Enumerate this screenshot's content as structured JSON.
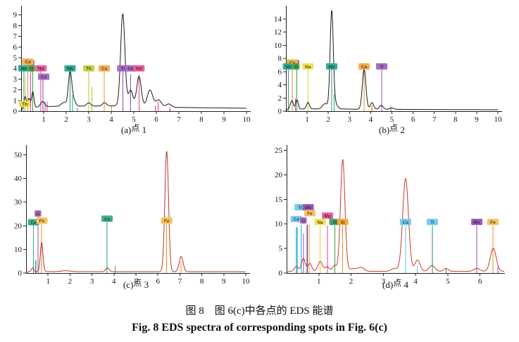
{
  "figure": {
    "caption_cn": "图 8　图 6(c)中各点的 EDS 能谱",
    "caption_en": "Fig. 8 EDS spectra of corresponding spots in Fig.  6(c)"
  },
  "chart_data": {
    "type": "line",
    "description": "Four EDS spectra subplots; x axis is energy (keV), y axis is counts; vertical colored lines mark element emission lines with colored element labels",
    "subplots": [
      {
        "id": "a",
        "caption": {
          "prefix": "(a)",
          "cn": "点",
          "num": "1"
        },
        "xlim": [
          0,
          10
        ],
        "ylim": [
          0,
          9.6
        ],
        "xticks": [
          1,
          2,
          3,
          4,
          5,
          6,
          7,
          8,
          9,
          10
        ],
        "yticks": [
          0,
          1,
          2,
          3,
          4,
          5,
          6,
          7,
          8,
          9
        ],
        "curve_color": "#1b1b1b",
        "baseline": [
          [
            0,
            0
          ],
          [
            0.06,
            0.2
          ],
          [
            0.5,
            0.35
          ],
          [
            1.4,
            0.45
          ],
          [
            4.3,
            0.5
          ],
          [
            5.2,
            0.45
          ],
          [
            6.9,
            0.35
          ],
          [
            10,
            0.28
          ]
        ],
        "peaks": [
          [
            0.18,
            1.1,
            0.05
          ],
          [
            0.35,
            0.9,
            0.06
          ],
          [
            0.52,
            1.45,
            0.05
          ],
          [
            0.95,
            0.5,
            0.09
          ],
          [
            1.9,
            0.35,
            0.12
          ],
          [
            2.17,
            3.1,
            0.075
          ],
          [
            2.32,
            0.6,
            0.09
          ],
          [
            3.0,
            0.3,
            0.09
          ],
          [
            3.7,
            0.3,
            0.09
          ],
          [
            4.51,
            8.6,
            0.095
          ],
          [
            4.86,
            1.5,
            0.1
          ],
          [
            5.23,
            2.8,
            0.1
          ],
          [
            5.72,
            1.55,
            0.12
          ],
          [
            6.1,
            0.65,
            0.12
          ],
          [
            6.55,
            0.3,
            0.12
          ]
        ],
        "lines": [
          [
            0.12,
            3.8,
            "#23a089"
          ],
          [
            0.2,
            3.3,
            "#ded23e"
          ],
          [
            0.3,
            4.35,
            "#f08c1e"
          ],
          [
            0.42,
            4.2,
            "#e6399b"
          ],
          [
            0.52,
            3.8,
            "#3ca040"
          ],
          [
            0.88,
            3.7,
            "#e6399b"
          ],
          [
            0.97,
            3.0,
            "#8a4bb8"
          ],
          [
            1.06,
            0.9,
            "#8a4bb8"
          ],
          [
            1.15,
            0.9,
            "#e6399b"
          ],
          [
            2.17,
            3.8,
            "#23a089"
          ],
          [
            2.28,
            1.5,
            "#23a089"
          ],
          [
            2.5,
            0.3,
            "#3ca040"
          ],
          [
            3.0,
            3.65,
            "#b0c832"
          ],
          [
            3.14,
            2.3,
            "#b0c832"
          ],
          [
            3.69,
            3.65,
            "#f08c1e"
          ],
          [
            4.01,
            0.5,
            "#f08c1e"
          ],
          [
            4.51,
            3.8,
            "#8a4bb8"
          ],
          [
            4.86,
            3.45,
            "#8a4bb8"
          ],
          [
            5.23,
            3.45,
            "#e6399b"
          ],
          [
            5.95,
            0.5,
            "#e6399b"
          ],
          [
            6.08,
            0.9,
            "#e6399b"
          ],
          [
            6.6,
            0.3,
            "#e6399b"
          ]
        ],
        "labels": [
          [
            "",
            0.47,
            4.5,
            "#ee5ea4"
          ],
          [
            "Ca",
            0.3,
            4.62,
            "#f5b04d"
          ],
          [
            "Nb",
            0.12,
            4.0,
            "#2fae99"
          ],
          [
            "O",
            0.47,
            4.0,
            "#46a94c"
          ],
          [
            "Nd",
            0.88,
            4.0,
            "#ee5ea4"
          ],
          [
            "Ce",
            1.0,
            3.22,
            "#a36cc9"
          ],
          [
            "Th",
            0.16,
            0.7,
            "#e8db52"
          ],
          [
            "Nb",
            2.17,
            4.0,
            "#2fae99"
          ],
          [
            "Th",
            3.0,
            4.0,
            "#c4d44a"
          ],
          [
            "Ca",
            3.69,
            4.0,
            "#f5b04d"
          ],
          [
            "Ti",
            4.51,
            4.0,
            "#a36cc9"
          ],
          [
            "Ce",
            4.86,
            4.0,
            "#a36cc9"
          ],
          [
            "Nd",
            5.23,
            4.0,
            "#ee5ea4"
          ]
        ]
      },
      {
        "id": "b",
        "caption": {
          "prefix": "(b)",
          "cn": "点",
          "num": "2"
        },
        "xlim": [
          0,
          10
        ],
        "ylim": [
          0,
          15.6
        ],
        "xticks": [
          1,
          2,
          3,
          4,
          5,
          6,
          7,
          8,
          9,
          10
        ],
        "yticks": [
          0,
          2,
          4,
          6,
          8,
          10,
          12,
          14
        ],
        "curve_color": "#1b1b1b",
        "baseline": [
          [
            0,
            0
          ],
          [
            0.08,
            0.3
          ],
          [
            1.5,
            0.35
          ],
          [
            2.6,
            0.35
          ],
          [
            3.2,
            0.3
          ],
          [
            10,
            0.22
          ]
        ],
        "peaks": [
          [
            0.28,
            1.3,
            0.07
          ],
          [
            0.52,
            1.4,
            0.06
          ],
          [
            1.04,
            1.0,
            0.07
          ],
          [
            1.85,
            0.8,
            0.12
          ],
          [
            2.16,
            14.8,
            0.075
          ],
          [
            2.34,
            0.7,
            0.1
          ],
          [
            3.69,
            6.1,
            0.085
          ],
          [
            4.06,
            1.0,
            0.08
          ],
          [
            4.5,
            0.6,
            0.09
          ],
          [
            5.0,
            0.2,
            0.1
          ]
        ],
        "lines": [
          [
            0.12,
            6.45,
            "#23a089"
          ],
          [
            0.3,
            7.0,
            "#f08c1e"
          ],
          [
            0.45,
            2.0,
            "#8a4bb8"
          ],
          [
            0.52,
            6.45,
            "#3ca040"
          ],
          [
            1.04,
            6.35,
            "#ded23e"
          ],
          [
            2.16,
            6.35,
            "#23a089"
          ],
          [
            2.28,
            2.6,
            "#23a089"
          ],
          [
            3.69,
            6.35,
            "#f08c1e"
          ],
          [
            4.06,
            0.9,
            "#f08c1e"
          ],
          [
            4.52,
            6.35,
            "#8a4bb8"
          ],
          [
            4.95,
            0.8,
            "#8a4bb8"
          ]
        ],
        "labels": [
          [
            "",
            0.5,
            7.3,
            "#a36cc9"
          ],
          [
            "Ca",
            0.3,
            7.38,
            "#f5b04d"
          ],
          [
            "Nb",
            0.12,
            6.8,
            "#2fae99"
          ],
          [
            "O",
            0.48,
            6.8,
            "#46a94c"
          ],
          [
            "Na",
            1.04,
            6.8,
            "#f1e455"
          ],
          [
            "Nb",
            2.16,
            6.8,
            "#2fae99"
          ],
          [
            "Ca",
            3.69,
            6.8,
            "#f5b04d"
          ],
          [
            "Ti",
            4.52,
            6.8,
            "#a36cc9"
          ]
        ]
      },
      {
        "id": "c",
        "caption": {
          "prefix": "(c)",
          "cn": "点",
          "num": "3"
        },
        "xlim": [
          0,
          10
        ],
        "ylim": [
          0,
          53
        ],
        "xticks": [
          1,
          2,
          3,
          4,
          5,
          6,
          7,
          8,
          9,
          10
        ],
        "yticks": [
          0,
          10,
          20,
          30,
          40,
          50
        ],
        "curve_color": "#b5382c",
        "baseline": [
          [
            0,
            0
          ],
          [
            0.1,
            0.6
          ],
          [
            10,
            0.55
          ]
        ],
        "peaks": [
          [
            0.3,
            1.6,
            0.05
          ],
          [
            0.71,
            12.2,
            0.06
          ],
          [
            1.8,
            0.4,
            0.2
          ],
          [
            3.7,
            1.6,
            0.08
          ],
          [
            6.4,
            51.0,
            0.085
          ],
          [
            7.06,
            6.4,
            0.09
          ]
        ],
        "lines": [
          [
            0.34,
            20.2,
            "#2ea37f"
          ],
          [
            0.44,
            5.3,
            "#2ea37f"
          ],
          [
            0.54,
            23.8,
            "#8a4bb8"
          ],
          [
            0.71,
            20.8,
            "#f08c1e"
          ],
          [
            3.69,
            21.6,
            "#2ea37f"
          ],
          [
            4.05,
            3.0,
            "#2ea37f"
          ],
          [
            6.4,
            20.8,
            "#f08c1e"
          ],
          [
            7.05,
            5.0,
            "#f08c1e"
          ]
        ],
        "labels": [
          [
            "Ca",
            0.34,
            21.5,
            "#3cb08f"
          ],
          [
            "O",
            0.54,
            25.2,
            "#a36cc9"
          ],
          [
            "Fe",
            0.72,
            22.2,
            "#f5c35f"
          ],
          [
            "Ca",
            3.69,
            23.0,
            "#3cb08f"
          ],
          [
            "Fe",
            6.4,
            22.2,
            "#f5c35f"
          ]
        ]
      },
      {
        "id": "d",
        "caption": {
          "prefix": "(d)",
          "cn": "点",
          "num": "4"
        },
        "xlim": [
          0,
          6.75
        ],
        "ylim": [
          0,
          25.5
        ],
        "xticks": [
          1,
          2,
          3,
          4,
          5,
          6
        ],
        "yticks": [
          0,
          5,
          10,
          15,
          20,
          25
        ],
        "curve_color": "#c43b2b",
        "baseline": [
          [
            0,
            0
          ],
          [
            0.08,
            0.35
          ],
          [
            6.75,
            0.35
          ]
        ],
        "peaks": [
          [
            0.3,
            1.0,
            0.06
          ],
          [
            0.52,
            2.6,
            0.06
          ],
          [
            0.72,
            1.6,
            0.06
          ],
          [
            1.04,
            2.0,
            0.07
          ],
          [
            1.26,
            0.9,
            0.07
          ],
          [
            1.49,
            1.2,
            0.06
          ],
          [
            1.74,
            22.8,
            0.07
          ],
          [
            2.05,
            0.5,
            0.1
          ],
          [
            2.3,
            0.8,
            0.1
          ],
          [
            3.35,
            0.6,
            0.1
          ],
          [
            3.69,
            18.9,
            0.09
          ],
          [
            4.06,
            2.3,
            0.08
          ],
          [
            4.51,
            1.2,
            0.09
          ],
          [
            4.95,
            0.6,
            0.07
          ],
          [
            5.9,
            0.6,
            0.09
          ],
          [
            6.41,
            4.7,
            0.09
          ]
        ],
        "lines": [
          [
            0.32,
            9.3,
            "#5ec3e8",
            3
          ],
          [
            0.45,
            9.8,
            "#5ec3e8",
            1.5
          ],
          [
            0.52,
            8.0,
            "#8a4bb8"
          ],
          [
            0.64,
            9.8,
            "#6a3d9a"
          ],
          [
            0.7,
            9.8,
            "#f08c1e"
          ],
          [
            1.04,
            9.7,
            "#ded23e"
          ],
          [
            1.27,
            9.7,
            "#e6399b"
          ],
          [
            1.5,
            9.7,
            "#2f9c58"
          ],
          [
            1.74,
            9.7,
            "#ef9426"
          ],
          [
            3.69,
            9.7,
            "#5ec3e8"
          ],
          [
            4.05,
            1.5,
            "#5ec3e8"
          ],
          [
            4.52,
            9.7,
            "#1f8f7a"
          ],
          [
            4.95,
            1.0,
            "#1f8f7a"
          ],
          [
            5.9,
            9.7,
            "#8a4bb8"
          ],
          [
            6.4,
            9.7,
            "#f08c1e"
          ],
          [
            6.55,
            1.2,
            "#8a4bb8"
          ]
        ],
        "labels": [
          [
            "Ti",
            0.42,
            13.4,
            "#72cdee"
          ],
          [
            "Mn",
            0.67,
            13.4,
            "#9c59c0"
          ],
          [
            "Fe",
            0.72,
            12.2,
            "#f5c35f"
          ],
          [
            "Ca",
            0.3,
            11.0,
            "#72cdee"
          ],
          [
            "O",
            0.52,
            10.7,
            "#a36cc9"
          ],
          [
            "Na",
            1.04,
            10.4,
            "#f1e455"
          ],
          [
            "Mg",
            1.27,
            11.7,
            "#ee5ea4"
          ],
          [
            "Al",
            1.5,
            10.4,
            "#3da568"
          ],
          [
            "Si",
            1.74,
            10.4,
            "#f4a93c"
          ],
          [
            "Ca",
            3.69,
            10.4,
            "#72cdee"
          ],
          [
            "Ti",
            4.52,
            10.4,
            "#72cdee"
          ],
          [
            "Mn",
            5.9,
            10.4,
            "#9c59c0"
          ],
          [
            "Fe",
            6.4,
            10.4,
            "#f5c35f"
          ]
        ]
      }
    ]
  }
}
